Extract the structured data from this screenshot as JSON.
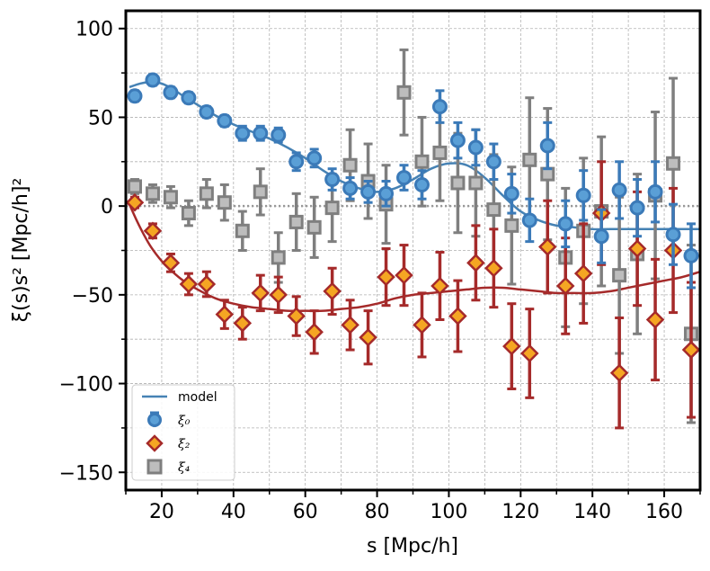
{
  "chart_data": {
    "type": "scatter",
    "xlabel": "s [Mpc/h]",
    "ylabel": "ξ(s)s² [Mpc/h]²",
    "xlim": [
      10,
      170
    ],
    "ylim": [
      -160,
      110
    ],
    "xticks": [
      20,
      40,
      60,
      80,
      100,
      120,
      140,
      160
    ],
    "yticks": [
      100,
      50,
      0,
      -50,
      -100,
      -150
    ],
    "xtick_labels": [
      "20",
      "40",
      "60",
      "80",
      "100",
      "120",
      "140",
      "160"
    ],
    "ytick_labels": [
      "100",
      "50",
      "0",
      "−50",
      "−100",
      "−150"
    ],
    "grid": true,
    "zero_line": true,
    "legend_position": "lower-left",
    "legend": {
      "model": "model",
      "xi0": "ξ₀",
      "xi2": "ξ₂",
      "xi4": "ξ₄"
    },
    "series": [
      {
        "name": "ξ₀",
        "marker": "circle",
        "color": "#5a9fd6",
        "edge": "#3b7ab8",
        "x": [
          12.5,
          17.5,
          22.5,
          27.5,
          32.5,
          37.5,
          42.5,
          47.5,
          52.5,
          57.5,
          62.5,
          67.5,
          72.5,
          77.5,
          82.5,
          87.5,
          92.5,
          97.5,
          102.5,
          107.5,
          112.5,
          117.5,
          122.5,
          127.5,
          132.5,
          137.5,
          142.5,
          147.5,
          152.5,
          157.5,
          162.5,
          167.5
        ],
        "y": [
          62,
          71,
          64,
          61,
          53,
          48,
          41,
          41,
          40,
          25,
          27,
          15,
          10,
          8,
          7,
          16,
          12,
          56,
          37,
          33,
          25,
          7,
          -8,
          34,
          -10,
          6,
          -17,
          9,
          -1,
          8,
          -16,
          -28
        ],
        "err": [
          3,
          3,
          3,
          3,
          3,
          3,
          4,
          4,
          4,
          5,
          5,
          6,
          6,
          6,
          7,
          7,
          8,
          9,
          10,
          10,
          10,
          11,
          12,
          13,
          13,
          14,
          15,
          16,
          16,
          17,
          17,
          18
        ]
      },
      {
        "name": "ξ₂",
        "marker": "diamond",
        "color": "#f5a623",
        "edge": "#a52a2a",
        "x": [
          12.5,
          17.5,
          22.5,
          27.5,
          32.5,
          37.5,
          42.5,
          47.5,
          52.5,
          57.5,
          62.5,
          67.5,
          72.5,
          77.5,
          82.5,
          87.5,
          92.5,
          97.5,
          102.5,
          107.5,
          112.5,
          117.5,
          122.5,
          127.5,
          132.5,
          137.5,
          142.5,
          147.5,
          152.5,
          157.5,
          162.5,
          167.5
        ],
        "y": [
          2,
          -14,
          -32,
          -44,
          -44,
          -61,
          -66,
          -49,
          -50,
          -62,
          -71,
          -48,
          -67,
          -74,
          -40,
          -39,
          -67,
          -45,
          -62,
          -32,
          -35,
          -79,
          -83,
          -23,
          -45,
          -38,
          -4,
          -94,
          -24,
          -64,
          -25,
          -81
        ],
        "err": [
          3,
          4,
          5,
          6,
          7,
          8,
          9,
          10,
          10,
          11,
          12,
          13,
          14,
          15,
          16,
          17,
          18,
          19,
          20,
          21,
          22,
          24,
          25,
          26,
          27,
          28,
          29,
          31,
          32,
          34,
          35,
          38
        ]
      },
      {
        "name": "ξ₄",
        "marker": "square",
        "color": "#bdbdbd",
        "edge": "#7f7f7f",
        "x": [
          12.5,
          17.5,
          22.5,
          27.5,
          32.5,
          37.5,
          42.5,
          47.5,
          52.5,
          57.5,
          62.5,
          67.5,
          72.5,
          77.5,
          82.5,
          87.5,
          92.5,
          97.5,
          102.5,
          107.5,
          112.5,
          117.5,
          122.5,
          127.5,
          132.5,
          137.5,
          142.5,
          147.5,
          152.5,
          157.5,
          162.5,
          167.5
        ],
        "y": [
          11,
          7,
          5,
          -4,
          7,
          2,
          -14,
          8,
          -29,
          -9,
          -12,
          -1,
          23,
          14,
          1,
          64,
          25,
          30,
          13,
          13,
          -2,
          -11,
          26,
          18,
          -29,
          -14,
          -3,
          -39,
          -27,
          6,
          24,
          -72
        ],
        "err": [
          4,
          5,
          6,
          7,
          8,
          10,
          11,
          13,
          14,
          16,
          17,
          19,
          20,
          21,
          22,
          24,
          25,
          27,
          28,
          30,
          31,
          33,
          35,
          37,
          39,
          41,
          42,
          44,
          45,
          47,
          48,
          50
        ]
      }
    ],
    "models": [
      {
        "name": "ξ₀ model",
        "color": "#4682b4",
        "x": [
          11,
          14,
          17,
          20,
          23,
          26,
          30,
          35,
          40,
          45,
          50,
          55,
          60,
          65,
          70,
          75,
          80,
          85,
          90,
          95,
          100,
          105,
          110,
          115,
          120,
          125,
          130,
          135,
          140,
          145,
          150,
          155,
          160,
          165,
          170
        ],
        "y": [
          67,
          69,
          70,
          69,
          66,
          62,
          57,
          51,
          46,
          42,
          38,
          33,
          27,
          20,
          14,
          10,
          8,
          10,
          15,
          21,
          24,
          23,
          16,
          6,
          -3,
          -8,
          -11,
          -12,
          -13,
          -13,
          -13,
          -13,
          -13,
          -13,
          -13
        ]
      },
      {
        "name": "ξ₂ model",
        "color": "#a52a2a",
        "x": [
          11,
          13,
          15,
          17,
          20,
          23,
          26,
          30,
          35,
          40,
          45,
          50,
          55,
          60,
          65,
          70,
          75,
          80,
          85,
          90,
          95,
          100,
          105,
          110,
          115,
          120,
          125,
          130,
          135,
          140,
          145,
          150,
          155,
          160,
          165,
          170
        ],
        "y": [
          1,
          -8,
          -16,
          -23,
          -31,
          -37,
          -42,
          -47,
          -52,
          -55,
          -57,
          -58,
          -59,
          -59,
          -59,
          -58,
          -57,
          -55,
          -52,
          -50,
          -49,
          -48,
          -47,
          -46,
          -46,
          -47,
          -48,
          -49,
          -49,
          -49,
          -48,
          -46,
          -44,
          -42,
          -40,
          -37
        ]
      }
    ]
  }
}
